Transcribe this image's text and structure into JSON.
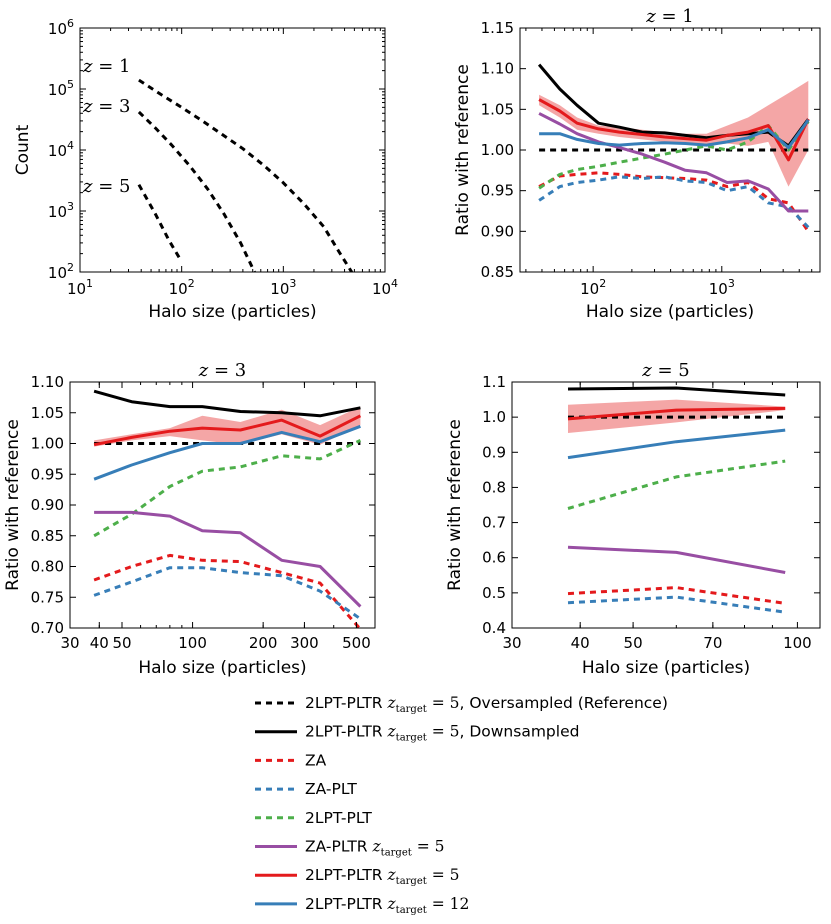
{
  "colors": {
    "black": "#000000",
    "red": "#e41a1c",
    "blue": "#377eb8",
    "green": "#4daf4a",
    "purple": "#984ea3",
    "band": "#f08080"
  },
  "chart_data": [
    {
      "id": "count",
      "type": "line",
      "xscale": "log",
      "yscale": "log",
      "xlim": [
        10,
        10000
      ],
      "ylim": [
        100,
        1000000
      ],
      "xlabel": "Halo size (particles)",
      "ylabel": "Count",
      "xticks": [
        {
          "v": 10,
          "b": "10",
          "e": "1"
        },
        {
          "v": 100,
          "b": "10",
          "e": "2"
        },
        {
          "v": 1000,
          "b": "10",
          "e": "3"
        },
        {
          "v": 10000,
          "b": "10",
          "e": "4"
        }
      ],
      "yticks": [
        {
          "v": 100,
          "b": "10",
          "e": "2"
        },
        {
          "v": 1000,
          "b": "10",
          "e": "3"
        },
        {
          "v": 10000,
          "b": "10",
          "e": "4"
        },
        {
          "v": 100000,
          "b": "10",
          "e": "5"
        },
        {
          "v": 1000000,
          "b": "10",
          "e": "6"
        }
      ],
      "series": [
        {
          "name": "z = 1",
          "label": "z = 1",
          "color": "black",
          "style": "dashed",
          "x": [
            38,
            60,
            100,
            160,
            250,
            400,
            650,
            1000,
            1600,
            2500,
            3500,
            4700
          ],
          "y": [
            140000,
            85000,
            50000,
            30000,
            18000,
            10500,
            5500,
            2900,
            1300,
            550,
            220,
            100
          ]
        },
        {
          "name": "z = 3",
          "label": "z = 3",
          "color": "black",
          "style": "dashed",
          "x": [
            38,
            55,
            80,
            120,
            180,
            260,
            380,
            520
          ],
          "y": [
            42000,
            23000,
            12000,
            5500,
            2300,
            900,
            300,
            100
          ]
        },
        {
          "name": "z = 5",
          "label": "z = 5",
          "color": "black",
          "style": "dashed",
          "x": [
            38,
            55,
            75,
            95
          ],
          "y": [
            2700,
            900,
            330,
            170
          ]
        }
      ]
    },
    {
      "id": "z1",
      "type": "line",
      "title": "z = 1",
      "xscale": "log",
      "yscale": "linear",
      "xlim": [
        27,
        5800
      ],
      "ylim": [
        0.85,
        1.15
      ],
      "xlabel": "Halo size (particles)",
      "ylabel": "Ratio with reference",
      "xticks": [
        {
          "v": 100,
          "b": "10",
          "e": "2"
        },
        {
          "v": 1000,
          "b": "10",
          "e": "3"
        }
      ],
      "yticks": [
        "0.85",
        "0.90",
        "0.95",
        "1.00",
        "1.05",
        "1.10",
        "1.15"
      ],
      "band": {
        "x": [
          38,
          55,
          75,
          110,
          160,
          240,
          360,
          520,
          760,
          1100,
          1600,
          2300,
          3300,
          4700
        ],
        "lo": [
          1.055,
          1.04,
          1.025,
          1.02,
          1.016,
          1.013,
          1.01,
          1.008,
          1.005,
          1.008,
          1.005,
          1.01,
          0.955,
          1.0
        ],
        "hi": [
          1.068,
          1.055,
          1.04,
          1.03,
          1.028,
          1.025,
          1.022,
          1.02,
          1.02,
          1.03,
          1.04,
          1.055,
          1.07,
          1.085
        ]
      },
      "series": [
        {
          "name": "Oversampled (Reference)",
          "color": "black",
          "style": "dashed",
          "x": [
            38,
            4700
          ],
          "y": [
            1.0,
            1.0
          ]
        },
        {
          "name": "Downsampled",
          "color": "black",
          "style": "solid",
          "x": [
            38,
            55,
            75,
            110,
            160,
            240,
            360,
            520,
            760,
            1100,
            1600,
            2300,
            3300,
            4700
          ],
          "y": [
            1.105,
            1.075,
            1.055,
            1.033,
            1.028,
            1.022,
            1.021,
            1.018,
            1.015,
            1.018,
            1.02,
            1.022,
            1.005,
            1.038
          ]
        },
        {
          "name": "ZA",
          "color": "red",
          "style": "dashed",
          "x": [
            38,
            55,
            75,
            110,
            160,
            240,
            360,
            520,
            760,
            1100,
            1600,
            2300,
            3300,
            4700
          ],
          "y": [
            0.955,
            0.968,
            0.97,
            0.972,
            0.97,
            0.967,
            0.966,
            0.965,
            0.963,
            0.955,
            0.96,
            0.94,
            0.935,
            0.9
          ]
        },
        {
          "name": "ZA-PLT",
          "color": "blue",
          "style": "dashed",
          "x": [
            38,
            55,
            75,
            110,
            160,
            240,
            360,
            520,
            760,
            1100,
            1600,
            2300,
            3300,
            4700
          ],
          "y": [
            0.938,
            0.955,
            0.96,
            0.963,
            0.967,
            0.965,
            0.967,
            0.962,
            0.96,
            0.95,
            0.955,
            0.935,
            0.93,
            0.905
          ]
        },
        {
          "name": "2LPT-PLT",
          "color": "green",
          "style": "dashed",
          "x": [
            38,
            55,
            75,
            110,
            160,
            240,
            360,
            520,
            760,
            1100,
            1600,
            2300,
            3300,
            4700
          ],
          "y": [
            0.953,
            0.97,
            0.976,
            0.98,
            0.985,
            0.99,
            0.995,
            1.0,
            1.005,
            1.0,
            1.01,
            1.03,
            1.0,
            1.035
          ]
        },
        {
          "name": "ZA-PLTR z_target=5",
          "color": "purple",
          "style": "solid",
          "x": [
            38,
            55,
            75,
            110,
            160,
            240,
            360,
            520,
            760,
            1100,
            1600,
            2300,
            3300,
            4700
          ],
          "y": [
            1.045,
            1.032,
            1.02,
            1.01,
            1.003,
            0.995,
            0.985,
            0.975,
            0.972,
            0.96,
            0.962,
            0.952,
            0.925,
            0.925
          ]
        },
        {
          "name": "2LPT-PLTR z_target=5",
          "color": "red",
          "style": "solid",
          "x": [
            38,
            55,
            75,
            110,
            160,
            240,
            360,
            520,
            760,
            1100,
            1600,
            2300,
            3300,
            4700
          ],
          "y": [
            1.062,
            1.048,
            1.033,
            1.026,
            1.022,
            1.019,
            1.016,
            1.014,
            1.012,
            1.018,
            1.022,
            1.03,
            0.988,
            1.038
          ]
        },
        {
          "name": "2LPT-PLTR z_target=12",
          "color": "blue",
          "style": "solid",
          "x": [
            38,
            55,
            75,
            110,
            160,
            240,
            360,
            520,
            760,
            1100,
            1600,
            2300,
            3300,
            4700
          ],
          "y": [
            1.02,
            1.02,
            1.013,
            1.008,
            1.006,
            1.008,
            1.009,
            1.008,
            1.006,
            1.01,
            1.015,
            1.025,
            1.003,
            1.037
          ]
        }
      ]
    },
    {
      "id": "z3",
      "type": "line",
      "title": "z = 3",
      "xscale": "log",
      "yscale": "linear",
      "xlim": [
        30,
        600
      ],
      "ylim": [
        0.7,
        1.1
      ],
      "xlabel": "Halo size (particles)",
      "ylabel": "Ratio with reference",
      "xticks": [
        {
          "v": 30,
          "t": "30"
        },
        {
          "v": 40,
          "t": "40"
        },
        {
          "v": 50,
          "t": "50"
        },
        {
          "v": 100,
          "t": "100"
        },
        {
          "v": 200,
          "t": "200"
        },
        {
          "v": 300,
          "t": "300"
        },
        {
          "v": 500,
          "t": "500"
        }
      ],
      "xticks_minor": [
        60,
        70,
        80,
        90,
        400
      ],
      "yticks": [
        "0.70",
        "0.75",
        "0.80",
        "0.85",
        "0.90",
        "0.95",
        "1.00",
        "1.05",
        "1.10"
      ],
      "band": {
        "x": [
          38,
          55,
          80,
          110,
          160,
          240,
          350,
          520
        ],
        "lo": [
          0.995,
          1.005,
          1.012,
          1.005,
          0.998,
          1.015,
          0.998,
          1.03
        ],
        "hi": [
          1.005,
          1.015,
          1.025,
          1.045,
          1.035,
          1.055,
          1.03,
          1.06
        ]
      },
      "series": [
        {
          "name": "Oversampled (Reference)",
          "color": "black",
          "style": "dashed",
          "x": [
            38,
            520
          ],
          "y": [
            1.0,
            1.0
          ]
        },
        {
          "name": "Downsampled",
          "color": "black",
          "style": "solid",
          "x": [
            38,
            55,
            80,
            110,
            160,
            240,
            350,
            520
          ],
          "y": [
            1.085,
            1.068,
            1.06,
            1.06,
            1.052,
            1.05,
            1.045,
            1.058
          ]
        },
        {
          "name": "ZA",
          "color": "red",
          "style": "dashed",
          "x": [
            38,
            55,
            80,
            110,
            160,
            240,
            350,
            520
          ],
          "y": [
            0.778,
            0.8,
            0.818,
            0.81,
            0.808,
            0.79,
            0.773,
            0.698
          ]
        },
        {
          "name": "ZA-PLT",
          "color": "blue",
          "style": "dashed",
          "x": [
            38,
            55,
            80,
            110,
            160,
            240,
            350,
            520
          ],
          "y": [
            0.753,
            0.775,
            0.798,
            0.798,
            0.79,
            0.785,
            0.76,
            0.715
          ]
        },
        {
          "name": "2LPT-PLT",
          "color": "green",
          "style": "dashed",
          "x": [
            38,
            55,
            80,
            110,
            160,
            240,
            350,
            520
          ],
          "y": [
            0.85,
            0.885,
            0.93,
            0.955,
            0.962,
            0.98,
            0.975,
            1.005
          ]
        },
        {
          "name": "ZA-PLTR z_target=5",
          "color": "purple",
          "style": "solid",
          "x": [
            38,
            55,
            80,
            110,
            160,
            240,
            350,
            520
          ],
          "y": [
            0.888,
            0.888,
            0.882,
            0.858,
            0.855,
            0.81,
            0.8,
            0.735
          ]
        },
        {
          "name": "2LPT-PLTR z_target=5",
          "color": "red",
          "style": "solid",
          "x": [
            38,
            55,
            80,
            110,
            160,
            240,
            350,
            520
          ],
          "y": [
            0.998,
            1.01,
            1.02,
            1.025,
            1.022,
            1.038,
            1.012,
            1.045
          ]
        },
        {
          "name": "2LPT-PLTR z_target=12",
          "color": "blue",
          "style": "solid",
          "x": [
            38,
            55,
            80,
            110,
            160,
            240,
            350,
            520
          ],
          "y": [
            0.942,
            0.965,
            0.985,
            1.0,
            1.0,
            1.018,
            1.003,
            1.028
          ]
        }
      ]
    },
    {
      "id": "z5",
      "type": "line",
      "title": "z = 5",
      "xscale": "log",
      "yscale": "linear",
      "xlim": [
        30,
        110
      ],
      "ylim": [
        0.4,
        1.1
      ],
      "xlabel": "Halo size (particles)",
      "ylabel": "Ratio with reference",
      "xticks": [
        {
          "v": 30,
          "t": "30"
        },
        {
          "v": 40,
          "t": "40"
        },
        {
          "v": 50,
          "t": "50"
        },
        {
          "v": 70,
          "t": "70"
        },
        {
          "v": 100,
          "t": "100"
        }
      ],
      "xticks_minor": [
        60,
        80,
        90
      ],
      "yticks": [
        "0.4",
        "0.5",
        "0.6",
        "0.7",
        "0.8",
        "0.9",
        "1.0",
        "1.1"
      ],
      "band": {
        "x": [
          38,
          60,
          95
        ],
        "lo": [
          0.955,
          0.985,
          1.02
        ],
        "hi": [
          1.035,
          1.05,
          1.03
        ]
      },
      "series": [
        {
          "name": "Oversampled (Reference)",
          "color": "black",
          "style": "dashed",
          "x": [
            38,
            95
          ],
          "y": [
            1.0,
            1.0
          ]
        },
        {
          "name": "Downsampled",
          "color": "black",
          "style": "solid",
          "x": [
            38,
            60,
            95
          ],
          "y": [
            1.08,
            1.083,
            1.063
          ]
        },
        {
          "name": "ZA",
          "color": "red",
          "style": "dashed",
          "x": [
            38,
            60,
            95
          ],
          "y": [
            0.498,
            0.515,
            0.47
          ]
        },
        {
          "name": "ZA-PLT",
          "color": "blue",
          "style": "dashed",
          "x": [
            38,
            60,
            95
          ],
          "y": [
            0.472,
            0.488,
            0.445
          ]
        },
        {
          "name": "2LPT-PLT",
          "color": "green",
          "style": "dashed",
          "x": [
            38,
            60,
            95
          ],
          "y": [
            0.74,
            0.83,
            0.875
          ]
        },
        {
          "name": "ZA-PLTR z_target=5",
          "color": "purple",
          "style": "solid",
          "x": [
            38,
            60,
            95
          ],
          "y": [
            0.63,
            0.615,
            0.558
          ]
        },
        {
          "name": "2LPT-PLTR z_target=5",
          "color": "red",
          "style": "solid",
          "x": [
            38,
            60,
            95
          ],
          "y": [
            0.995,
            1.02,
            1.025
          ]
        },
        {
          "name": "2LPT-PLTR z_target=12",
          "color": "blue",
          "style": "solid",
          "x": [
            38,
            60,
            95
          ],
          "y": [
            0.885,
            0.93,
            0.963
          ]
        }
      ]
    }
  ],
  "legend": {
    "target_sub": "target",
    "items": [
      {
        "prefix": "2LPT-PLTR ",
        "z": "z",
        "eq": " = 5",
        "suffix": ", Oversampled (Reference)",
        "color": "black",
        "style": "dashed"
      },
      {
        "prefix": "2LPT-PLTR ",
        "z": "z",
        "eq": " = 5",
        "suffix": ", Downsampled",
        "color": "black",
        "style": "solid"
      },
      {
        "prefix": "ZA",
        "color": "red",
        "style": "dashed"
      },
      {
        "prefix": "ZA-PLT",
        "color": "blue",
        "style": "dashed"
      },
      {
        "prefix": "2LPT-PLT",
        "color": "green",
        "style": "dashed"
      },
      {
        "prefix": "ZA-PLTR ",
        "z": "z",
        "eq": " = 5",
        "color": "purple",
        "style": "solid"
      },
      {
        "prefix": "2LPT-PLTR ",
        "z": "z",
        "eq": " = 5",
        "color": "red",
        "style": "solid"
      },
      {
        "prefix": "2LPT-PLTR ",
        "z": "z",
        "eq": " = 12",
        "color": "blue",
        "style": "solid"
      }
    ]
  }
}
